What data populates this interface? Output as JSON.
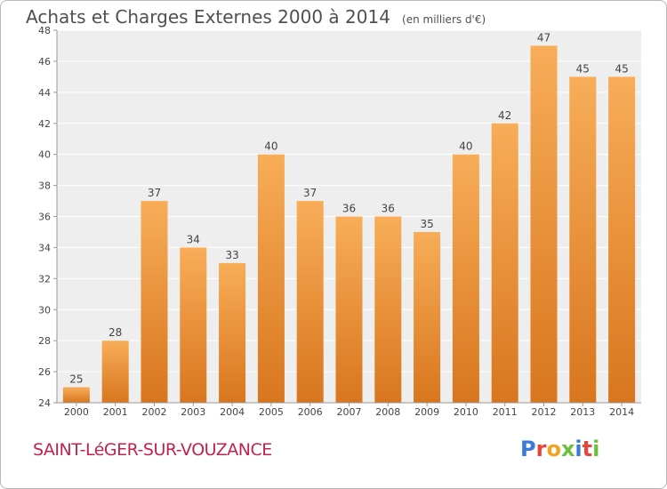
{
  "header": {
    "title": "Achats et Charges Externes 2000 à 2014",
    "unit": "(en milliers d'€)"
  },
  "footer": {
    "place": "SAINT-LéGER-SUR-VOUZANCE",
    "logo": "Proxiti",
    "logo_colors": [
      "#3a7bd5",
      "#e8443a",
      "#f3a321",
      "#6cbf3c",
      "#3a7bd5",
      "#e8443a",
      "#6cbf3c"
    ]
  },
  "colors": {
    "bar_top": "#f8ad58",
    "bar_bottom": "#d8761e",
    "plot_bg": "#eeeeee",
    "grid": "#ffffff",
    "axis_text": "#444444"
  },
  "chart_data": {
    "type": "bar",
    "title": "Achats et Charges Externes 2000 à 2014",
    "subtitle": "(en milliers d'€)",
    "categories": [
      "2000",
      "2001",
      "2002",
      "2003",
      "2004",
      "2005",
      "2006",
      "2007",
      "2008",
      "2009",
      "2010",
      "2011",
      "2012",
      "2013",
      "2014"
    ],
    "values": [
      25,
      28,
      37,
      34,
      33,
      40,
      37,
      36,
      36,
      35,
      40,
      42,
      47,
      45,
      45
    ],
    "ylim": [
      24,
      48
    ],
    "yticks": [
      24,
      26,
      28,
      30,
      32,
      34,
      36,
      38,
      40,
      42,
      44,
      46,
      48
    ],
    "grid": true,
    "data_labels": true,
    "legend": "none"
  }
}
